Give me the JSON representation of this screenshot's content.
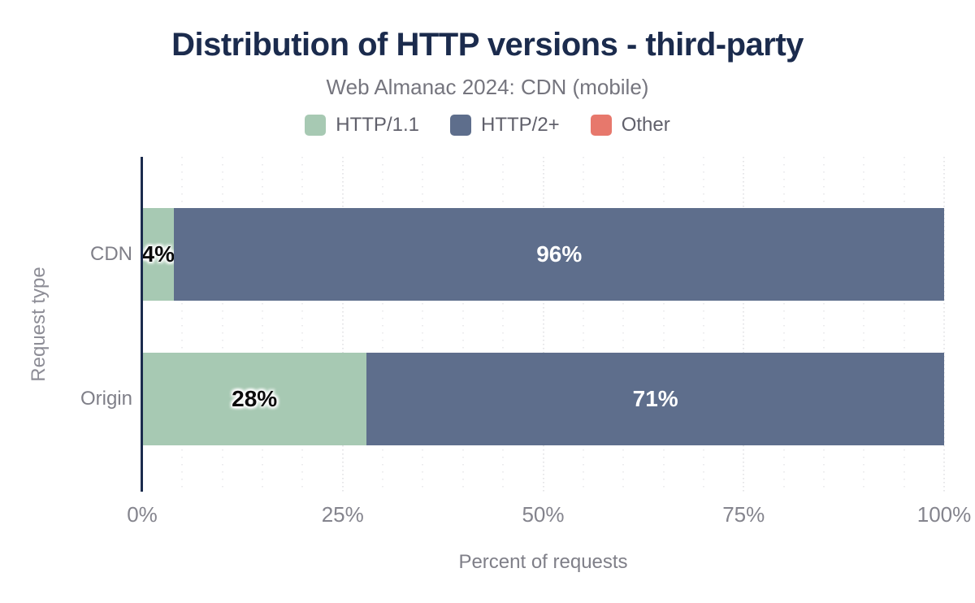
{
  "title": "Distribution of HTTP versions - third-party",
  "subtitle": "Web Almanac 2024: CDN (mobile)",
  "legend": {
    "items": [
      {
        "label": "HTTP/1.1",
        "color": "#a7c9b3"
      },
      {
        "label": "HTTP/2+",
        "color": "#5e6e8c"
      },
      {
        "label": "Other",
        "color": "#e7786c"
      }
    ]
  },
  "colors": {
    "title": "#1b2b4d",
    "axis_line": "#1b2b4d",
    "grid_minor": "#dadade",
    "grid_major": "#ccccd2",
    "label_gray": "#7f7f88"
  },
  "chart_data": {
    "type": "bar",
    "orientation": "horizontal",
    "stacked": true,
    "title": "Distribution of HTTP versions - third-party",
    "subtitle": "Web Almanac 2024: CDN (mobile)",
    "categories": [
      "CDN",
      "Origin"
    ],
    "series": [
      {
        "name": "HTTP/1.1",
        "color": "#a7c9b3",
        "values": [
          4,
          28
        ]
      },
      {
        "name": "HTTP/2+",
        "color": "#5e6e8c",
        "values": [
          96,
          71
        ]
      },
      {
        "name": "Other",
        "color": "#e7786c",
        "values": [
          0,
          1
        ]
      }
    ],
    "value_labels": [
      [
        "4%",
        "96%"
      ],
      [
        "28%",
        "71%"
      ]
    ],
    "xlabel": "Percent of requests",
    "ylabel": "Request type",
    "x_ticks": [
      "0%",
      "25%",
      "50%",
      "75%",
      "100%"
    ],
    "xlim": [
      0,
      100
    ],
    "grid": {
      "vertical_dotted": true,
      "minor_step_pct": 5,
      "major_step_pct": 25
    },
    "legend_position": "top"
  }
}
